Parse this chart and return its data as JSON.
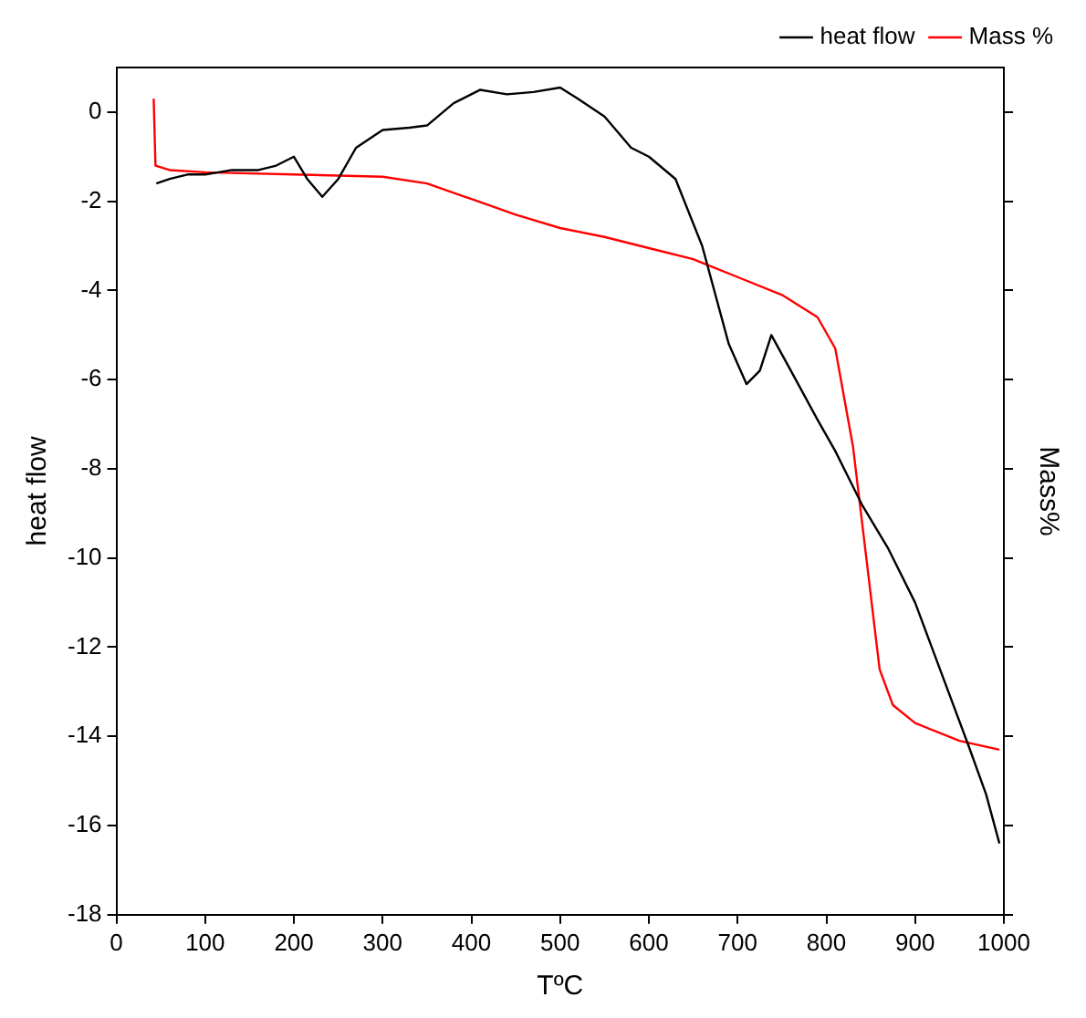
{
  "chart_data": {
    "type": "line",
    "xlabel": "TºC",
    "ylabel": "heat flow",
    "y2label": "Mass%",
    "xlim": [
      0,
      1000
    ],
    "xticks": [
      0,
      100,
      200,
      300,
      400,
      500,
      600,
      700,
      800,
      900,
      1000
    ],
    "ylim": [
      -18,
      1
    ],
    "yticks": [
      -18,
      -16,
      -14,
      -12,
      -10,
      -8,
      -6,
      -4,
      -2,
      0
    ],
    "grid": false,
    "legend": "top right",
    "marker": "none",
    "line_style": "solid",
    "series": [
      {
        "name": "heat flow",
        "color": "#000000",
        "x": [
          45,
          60,
          80,
          100,
          130,
          160,
          180,
          200,
          215,
          232,
          250,
          270,
          300,
          330,
          350,
          380,
          410,
          440,
          470,
          500,
          520,
          550,
          580,
          600,
          630,
          660,
          690,
          710,
          725,
          738,
          760,
          790,
          810,
          840,
          870,
          900,
          930,
          960,
          980,
          995
        ],
        "values": [
          -1.6,
          -1.5,
          -1.4,
          -1.4,
          -1.3,
          -1.3,
          -1.2,
          -1.0,
          -1.5,
          -1.9,
          -1.5,
          -0.8,
          -0.4,
          -0.35,
          -0.3,
          0.2,
          0.5,
          0.4,
          0.45,
          0.55,
          0.3,
          -0.1,
          -0.8,
          -1.0,
          -1.5,
          -3.0,
          -5.2,
          -6.1,
          -5.8,
          -5.0,
          -5.8,
          -6.9,
          -7.6,
          -8.8,
          -9.8,
          -11.0,
          -12.6,
          -14.2,
          -15.3,
          -16.4
        ]
      },
      {
        "name": "Mass %",
        "color": "#ff0000",
        "x": [
          42,
          44,
          60,
          100,
          200,
          300,
          350,
          400,
          450,
          500,
          550,
          600,
          650,
          700,
          750,
          790,
          810,
          830,
          845,
          860,
          875,
          900,
          950,
          995
        ],
        "values": [
          0.3,
          -1.2,
          -1.3,
          -1.35,
          -1.4,
          -1.45,
          -1.6,
          -1.95,
          -2.3,
          -2.6,
          -2.8,
          -3.05,
          -3.3,
          -3.7,
          -4.1,
          -4.6,
          -5.3,
          -7.5,
          -10.0,
          -12.5,
          -13.3,
          -13.7,
          -14.1,
          -14.3
        ]
      }
    ]
  }
}
